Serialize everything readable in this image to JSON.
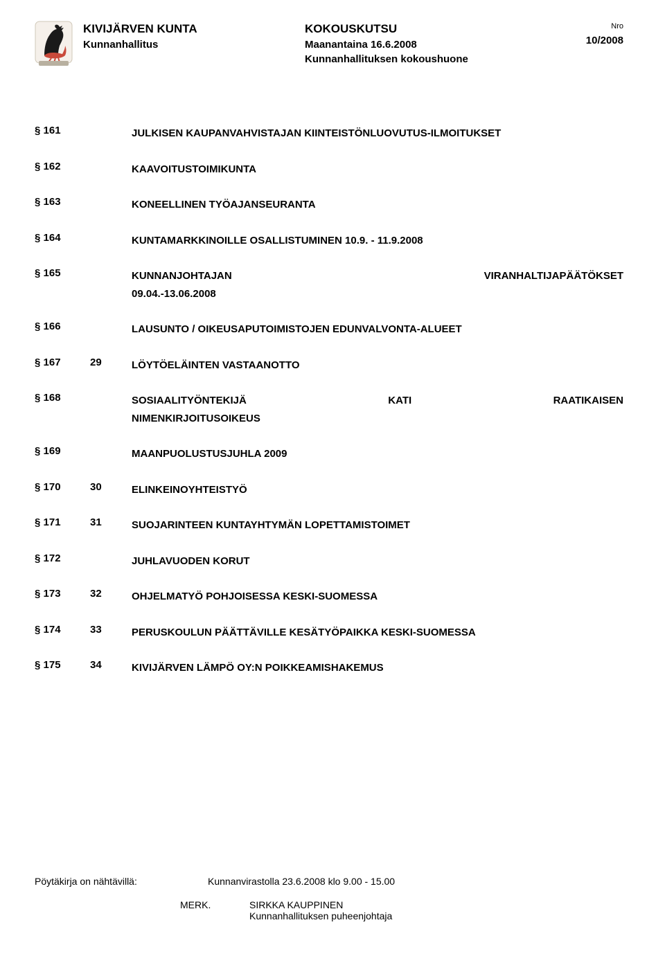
{
  "header": {
    "org": "KIVIJÄRVEN KUNTA",
    "sub": "Kunnanhallitus",
    "kutsu": "KOKOUSKUTSU",
    "date": "Maanantaina 16.6.2008",
    "room": "Kunnanhallituksen kokoushuone",
    "nro_label": "Nro",
    "issue": "10/2008"
  },
  "agenda": [
    {
      "sect": "§ 161",
      "attach": "",
      "desc": "JULKISEN KAUPANVAHVISTAJAN KIINTEISTÖNLUOVUTUS-ILMOITUKSET",
      "layout": "twoline"
    },
    {
      "sect": "§ 162",
      "attach": "",
      "desc": "KAAVOITUSTOIMIKUNTA"
    },
    {
      "sect": "§ 163",
      "attach": "",
      "desc": "KONEELLINEN TYÖAJANSEURANTA"
    },
    {
      "sect": "§ 164",
      "attach": "",
      "desc": "KUNTAMARKKINOILLE OSALLISTUMINEN 10.9. - 11.9.2008"
    },
    {
      "sect": "§ 165",
      "attach": "",
      "a": "KUNNANJOHTAJAN",
      "b": "VIRANHALTIJAPÄÄTÖKSET",
      "line2": "09.04.-13.06.2008",
      "layout": "spread2line"
    },
    {
      "sect": "§ 166",
      "attach": "",
      "desc": "LAUSUNTO / OIKEUSAPUTOIMISTOJEN EDUNVALVONTA-ALUEET",
      "layout": "twoline"
    },
    {
      "sect": "§ 167",
      "attach": "29",
      "desc": "LÖYTÖELÄINTEN VASTAANOTTO"
    },
    {
      "sect": "§ 168",
      "attach": "",
      "a": "SOSIAALITYÖNTEKIJÄ",
      "b": "KATI",
      "c": "RAATIKAISEN",
      "line2": "NIMENKIRJOITUSOIKEUS",
      "layout": "spread3line"
    },
    {
      "sect": "§ 169",
      "attach": "",
      "desc": "MAANPUOLUSTUSJUHLA 2009"
    },
    {
      "sect": "§ 170",
      "attach": "30",
      "desc": "ELINKEINOYHTEISTYÖ"
    },
    {
      "sect": "§ 171",
      "attach": "31",
      "desc": "SUOJARINTEEN KUNTAYHTYMÄN LOPETTAMISTOIMET"
    },
    {
      "sect": "§ 172",
      "attach": "",
      "desc": "JUHLAVUODEN KORUT"
    },
    {
      "sect": "§ 173",
      "attach": "32",
      "desc": "OHJELMATYÖ POHJOISESSA KESKI-SUOMESSA"
    },
    {
      "sect": "§ 174",
      "attach": "33",
      "desc": "PERUSKOULUN PÄÄTTÄVILLE KESÄTYÖPAIKKA KESKI-SUOMESSA",
      "layout": "twoline"
    },
    {
      "sect": "§ 175",
      "attach": "34",
      "desc": "KIVIJÄRVEN LÄMPÖ OY:N POIKKEAMISHAKEMUS"
    }
  ],
  "footer": {
    "disp_label": "Pöytäkirja on nähtävillä:",
    "disp_value": "Kunnanvirastolla 23.6.2008 klo 9.00 - 15.00",
    "merk_label": "MERK.",
    "sign_name": "SIRKKA KAUPPINEN",
    "sign_title": "Kunnanhallituksen puheenjohtaja"
  },
  "style": {
    "crest_bg": "#f5f0ea",
    "crest_border": "#d0c8b8",
    "rooster_black": "#1a1a1a",
    "rooster_red": "#c94a3b",
    "base_gray": "#b8b0a0"
  }
}
